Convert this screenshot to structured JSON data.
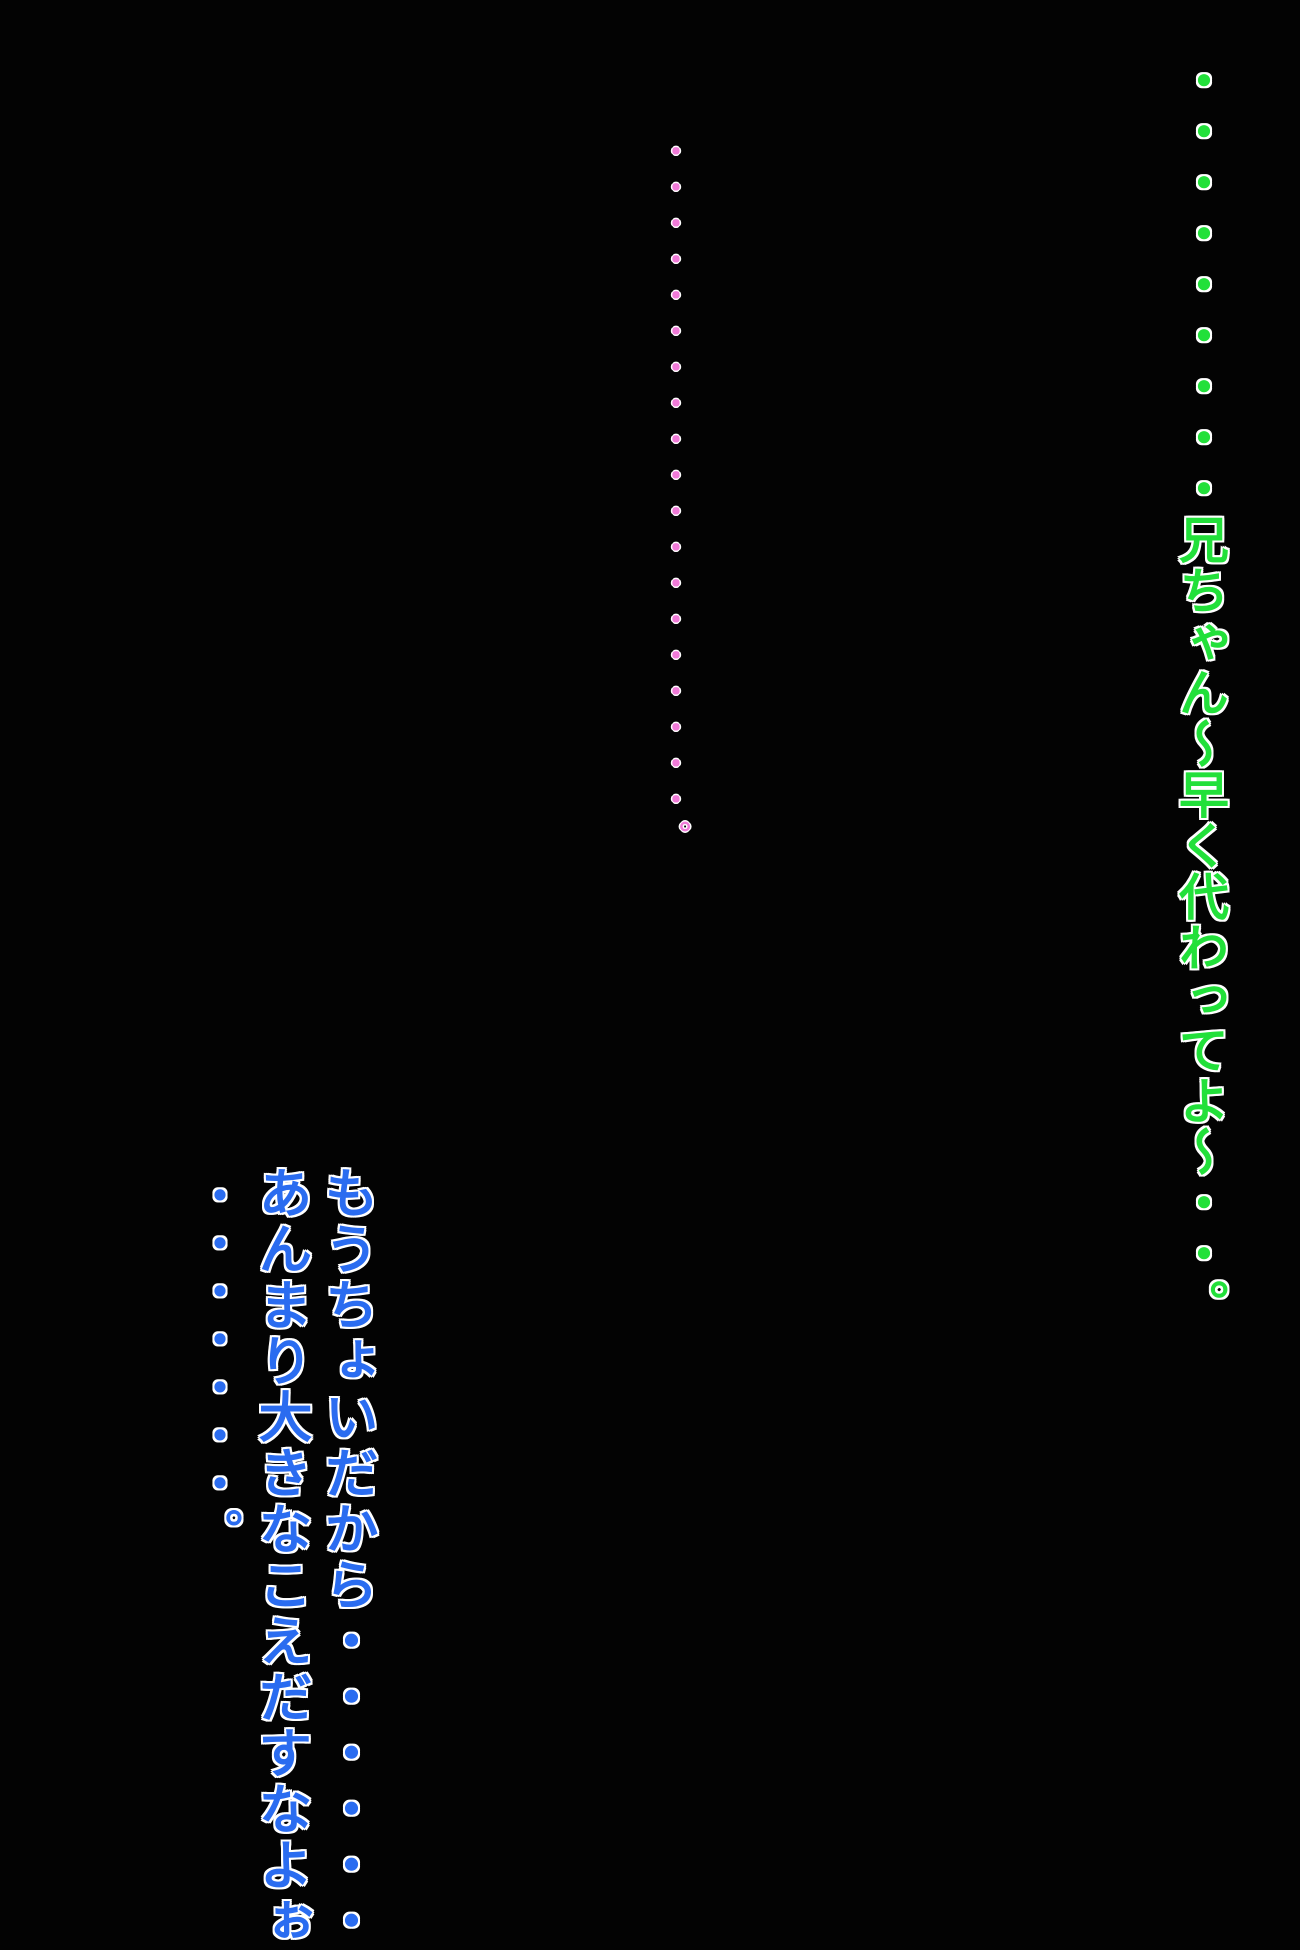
{
  "dialogue": {
    "green_line": "・・・・・・・・・兄ちゃん〜早く代わってよ〜・・。",
    "pink_line": "・・・・・・・・・・・・・・・・・・・。",
    "blue_lines": [
      "もうちょいだから・・・・・・",
      "あんまり大きなこえだすなよぉ",
      "・・・・・・・。"
    ]
  },
  "colors": {
    "background": "#030303",
    "green_text": "#22e03a",
    "pink_text": "#f07ad8",
    "blue_text": "#2a6cf0",
    "outline": "#ffffff"
  }
}
